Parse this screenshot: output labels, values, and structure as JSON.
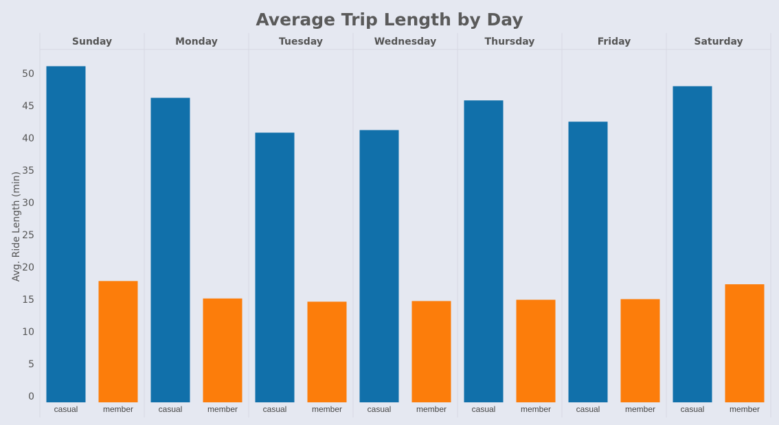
{
  "chart_data": {
    "type": "bar",
    "title": "Average Trip Length by Day",
    "y_label": "Avg. Ride Length (min)",
    "categories": [
      "Sunday",
      "Monday",
      "Tuesday",
      "Wednesday",
      "Thursday",
      "Friday",
      "Saturday"
    ],
    "series": [
      {
        "name": "casual",
        "color": "#1170aa",
        "values": [
          52.1,
          47.2,
          41.8,
          42.2,
          46.8,
          43.5,
          49.0
        ]
      },
      {
        "name": "member",
        "color": "#fc7d0b",
        "values": [
          18.8,
          16.1,
          15.6,
          15.7,
          15.9,
          16.0,
          18.3
        ]
      }
    ],
    "ylim": [
      0,
      54.7
    ],
    "yticks": [
      0,
      5,
      10,
      15,
      20,
      25,
      30,
      35,
      40,
      45,
      50
    ],
    "grid": false
  }
}
